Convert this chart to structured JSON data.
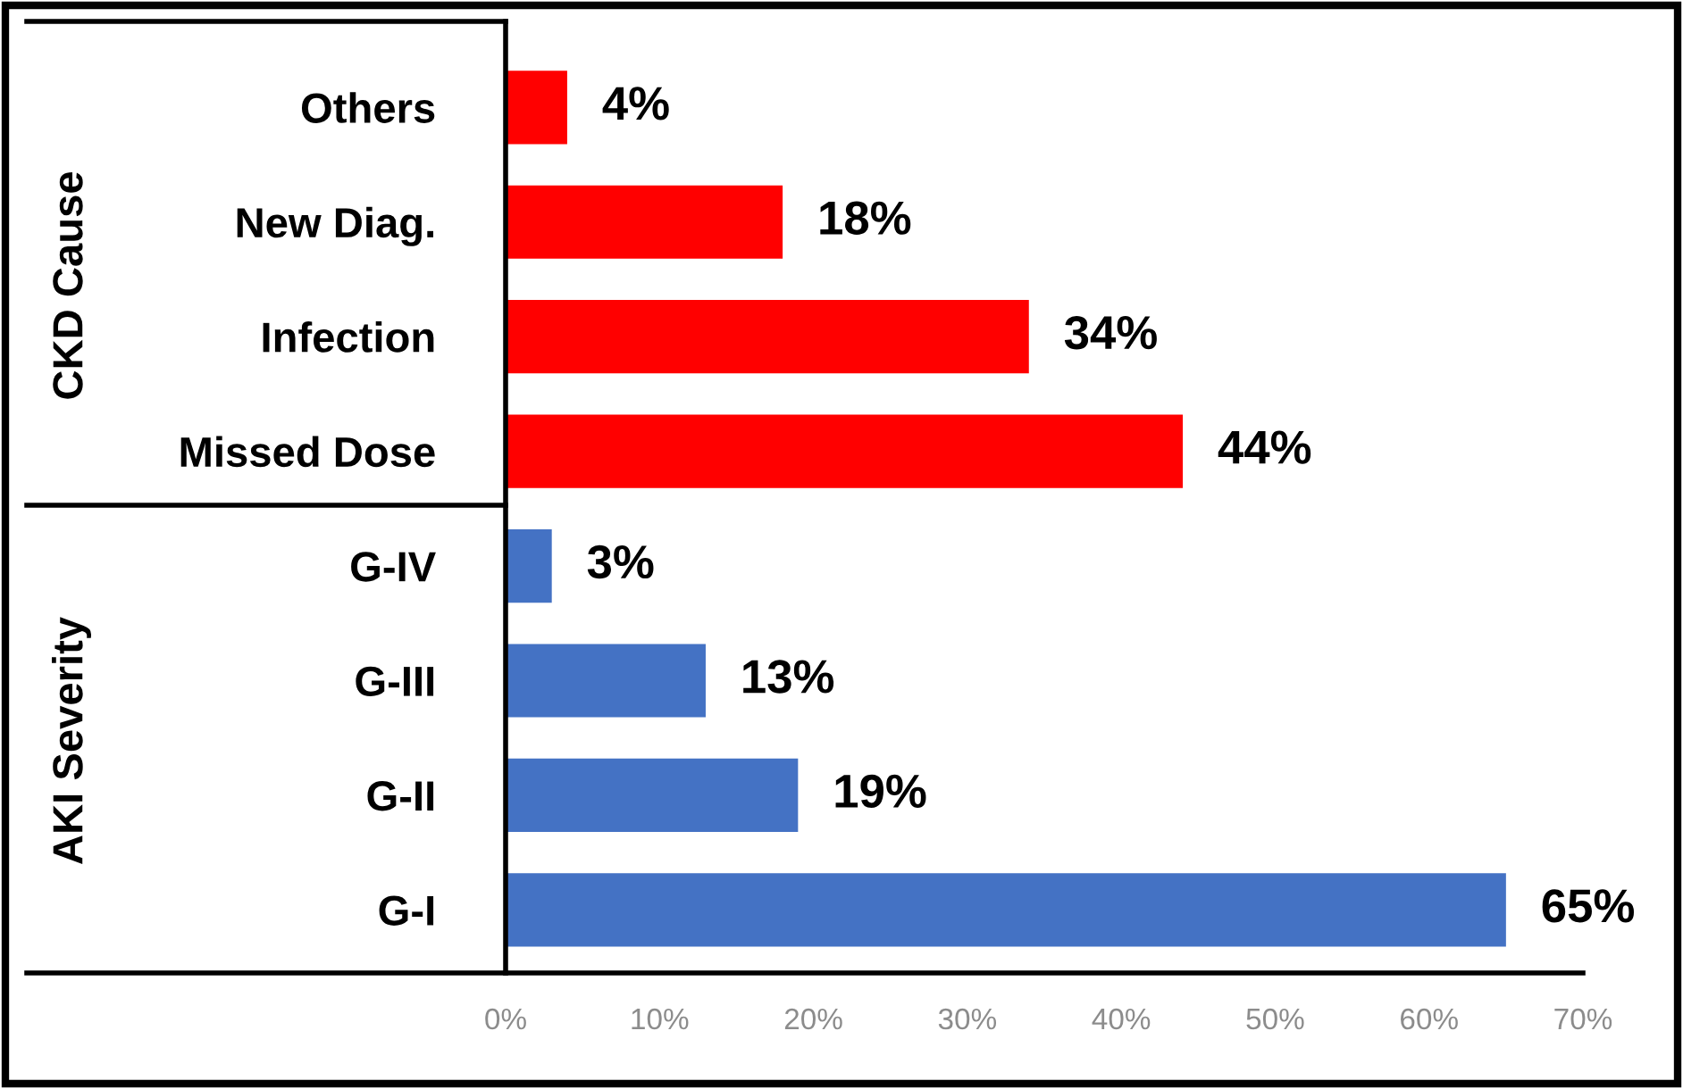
{
  "chart_data": {
    "type": "bar",
    "orientation": "horizontal",
    "categories": [
      "Others",
      "New Diag.",
      "Infection",
      "Missed Dose",
      "G-IV",
      "G-III",
      "G-II",
      "G-I"
    ],
    "values": [
      4,
      18,
      34,
      44,
      3,
      13,
      19,
      65
    ],
    "colors": [
      "#ff0000",
      "#ff0000",
      "#ff0000",
      "#ff0000",
      "#4472c4",
      "#4472c4",
      "#4472c4",
      "#4472c4"
    ],
    "value_labels": [
      "4%",
      "18%",
      "34%",
      "44%",
      "3%",
      "13%",
      "19%",
      "65%"
    ],
    "xlim": [
      0,
      70
    ],
    "xticks": [
      {
        "value": 0,
        "label": "0%"
      },
      {
        "value": 10,
        "label": "10%"
      },
      {
        "value": 20,
        "label": "20%"
      },
      {
        "value": 30,
        "label": "30%"
      },
      {
        "value": 40,
        "label": "40%"
      },
      {
        "value": 50,
        "label": "50%"
      },
      {
        "value": 60,
        "label": "60%"
      },
      {
        "value": 70,
        "label": "70%"
      }
    ],
    "annotations": [
      "CKD Cause",
      "AKI Severity"
    ],
    "grid": false,
    "legend": false
  }
}
